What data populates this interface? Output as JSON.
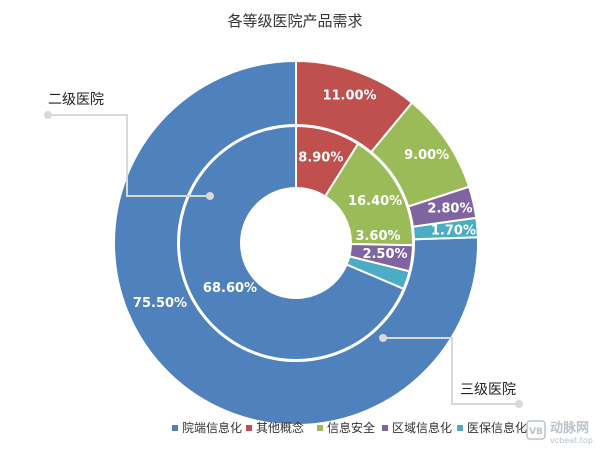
{
  "chart_data": {
    "type": "pie",
    "variant": "nested-donut",
    "title": "各等级医院产品需求",
    "categories": [
      "院端信息化",
      "其他概念",
      "信息安全",
      "区域信息化",
      "医保信息化"
    ],
    "colors": [
      "#4f81bd",
      "#c0504d",
      "#9bbb59",
      "#8064a2",
      "#4bacc6"
    ],
    "series": [
      {
        "name": "三级医院",
        "ring": "outer",
        "values": [
          75.5,
          11.0,
          9.0,
          2.8,
          1.7
        ],
        "labels": [
          "75.50%",
          "11.00%",
          "9.00%",
          "2.80%",
          "1.70%"
        ]
      },
      {
        "name": "二级医院",
        "ring": "inner",
        "values": [
          68.6,
          8.9,
          16.4,
          3.6,
          2.5
        ],
        "labels": [
          "68.60%",
          "8.90%",
          "16.40%",
          "3.60%",
          "2.50%"
        ]
      }
    ],
    "legend_position": "bottom"
  },
  "annotations": {
    "inner": "二级医院",
    "outer": "三级医院"
  },
  "watermark": {
    "main": "动脉网",
    "sub": "vcbeat.top",
    "badge": "VB"
  }
}
